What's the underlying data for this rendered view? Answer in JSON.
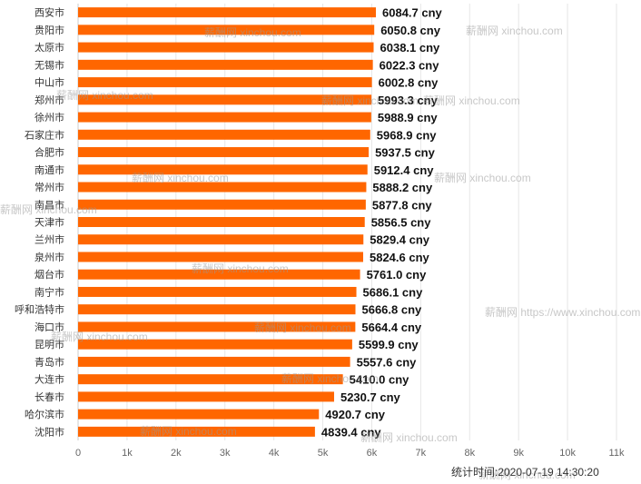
{
  "chart_data": {
    "type": "bar",
    "orientation": "horizontal",
    "categories": [
      "西安市",
      "贵阳市",
      "太原市",
      "无锡市",
      "中山市",
      "郑州市",
      "徐州市",
      "石家庄市",
      "合肥市",
      "南通市",
      "常州市",
      "南昌市",
      "天津市",
      "兰州市",
      "泉州市",
      "烟台市",
      "南宁市",
      "呼和浩特市",
      "海口市",
      "昆明市",
      "青岛市",
      "大连市",
      "长春市",
      "哈尔滨市",
      "沈阳市"
    ],
    "values": [
      6084.7,
      6050.8,
      6038.1,
      6022.3,
      6002.8,
      5993.3,
      5988.9,
      5968.9,
      5937.5,
      5912.4,
      5888.2,
      5877.8,
      5856.5,
      5829.4,
      5824.6,
      5761.0,
      5686.1,
      5666.8,
      5664.4,
      5599.9,
      5557.6,
      5410.0,
      5230.7,
      4920.7,
      4839.4
    ],
    "value_labels": [
      "6084.7 cny",
      "6050.8 cny",
      "6038.1 cny",
      "6022.3 cny",
      "6002.8 cny",
      "5993.3 cny",
      "5988.9 cny",
      "5968.9 cny",
      "5937.5 cny",
      "5912.4 cny",
      "5888.2 cny",
      "5877.8 cny",
      "5856.5 cny",
      "5829.4 cny",
      "5824.6 cny",
      "5761.0 cny",
      "5686.1 cny",
      "5666.8 cny",
      "5664.4 cny",
      "5599.9 cny",
      "5557.6 cny",
      "5410.0 cny",
      "5230.7 cny",
      "4920.7 cny",
      "4839.4 cny"
    ],
    "unit": "cny",
    "xlim": [
      0,
      11000
    ],
    "x_ticks": [
      0,
      1000,
      2000,
      3000,
      4000,
      5000,
      6000,
      7000,
      8000,
      9000,
      10000,
      11000
    ],
    "x_tick_labels": [
      "0",
      "1k",
      "2k",
      "3k",
      "4k",
      "5k",
      "6k",
      "7k",
      "8k",
      "9k",
      "10k",
      "11k"
    ],
    "bar_color": "#ff6600",
    "grid": true,
    "title": "",
    "xlabel": "",
    "ylabel": ""
  },
  "footer": {
    "stat_time": "统计时间:2020-07-19 14:30:20"
  },
  "watermarks": [
    "薪酬网 xinchou.com",
    "薪酬网 xinchou.com",
    "薪酬网 xinchou.com",
    "薪酬网 xinchou.com",
    "薪酬网 xinchou.com",
    "薪酬网 xinchou.com",
    "薪酬网 xinchou.com",
    "薪酬网 xinchou.com",
    "薪酬网 xinchou.com",
    "薪酬网 https://www.xinchou.com",
    "薪酬网 xinchou.com",
    "薪酬网 xinchou.com",
    "薪酬网 xinchou.com",
    "薪酬网 xinchou.com",
    "薪酬网 xinchou.com",
    "薪酬网 xinchou.com"
  ]
}
